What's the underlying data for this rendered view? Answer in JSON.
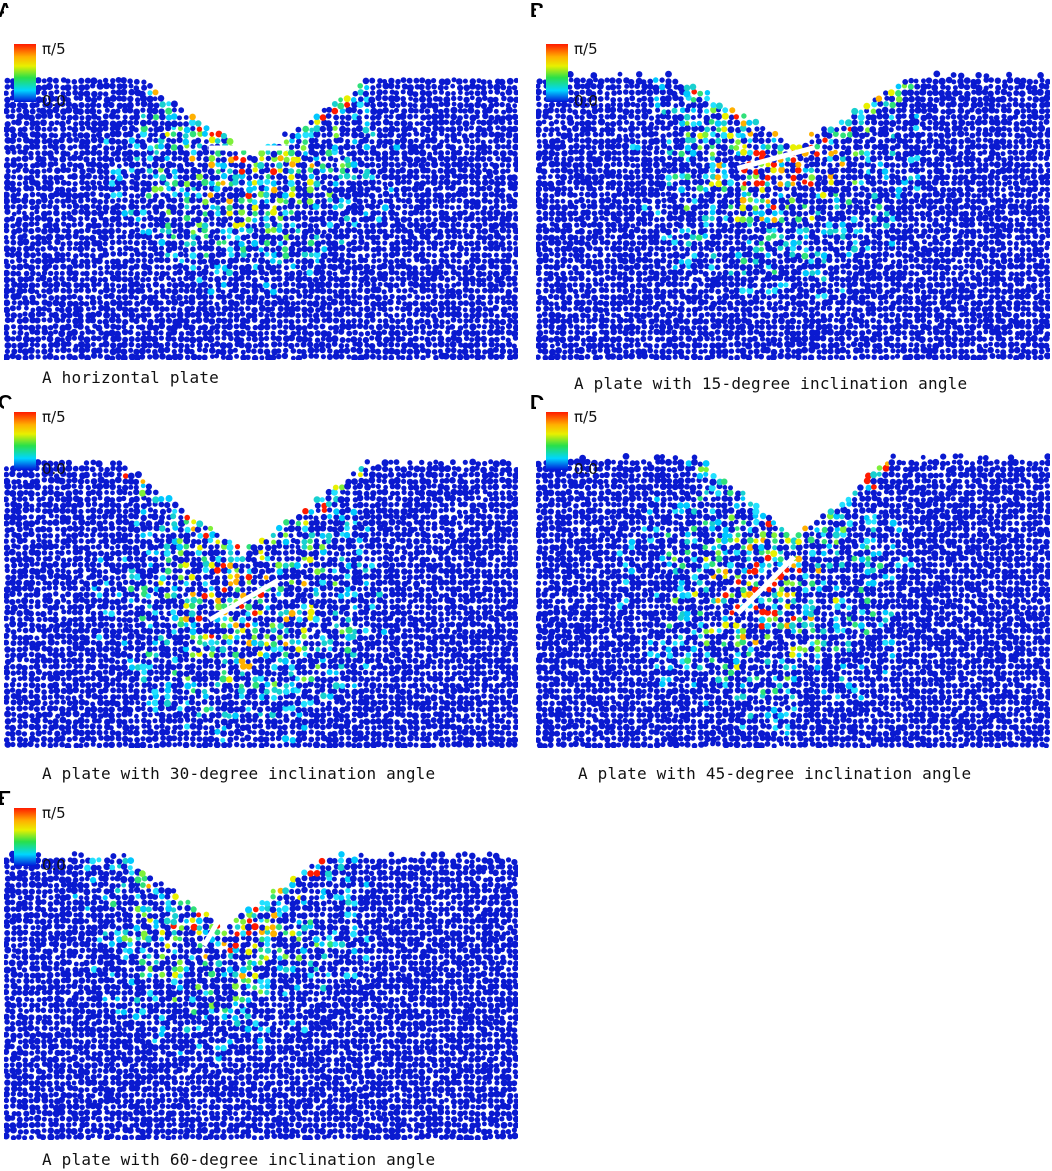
{
  "legend": {
    "max_label": "π/5",
    "min_label": "0.0"
  },
  "colors": {
    "particle_base": "#0a1ad0",
    "background": "#ffffff",
    "plate": "#ffffff"
  },
  "panels": [
    {
      "letter": "A",
      "caption": "A horizontal plate",
      "plate_angle_deg": 0
    },
    {
      "letter": "B",
      "caption": "A plate with 15-degree inclination angle",
      "plate_angle_deg": 15
    },
    {
      "letter": "C",
      "caption": "A plate with 30-degree inclination angle",
      "plate_angle_deg": 30
    },
    {
      "letter": "D",
      "caption": "A plate with 45-degree inclination angle",
      "plate_angle_deg": 45
    },
    {
      "letter": "E",
      "caption": "A plate with 60-degree inclination angle",
      "plate_angle_deg": 60
    }
  ]
}
